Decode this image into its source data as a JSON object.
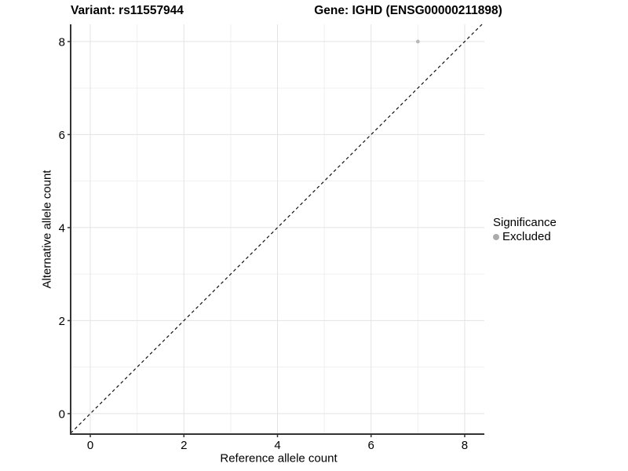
{
  "titles": {
    "variant": "Variant: rs11557944",
    "gene": "Gene: IGHD (ENSG00000211898)"
  },
  "chart_data": {
    "type": "scatter",
    "title": "Variant: rs11557944    Gene: IGHD (ENSG00000211898)",
    "xlabel": "Reference allele count",
    "ylabel": "Alternative allele count",
    "x_ticks": [
      0,
      2,
      4,
      6,
      8
    ],
    "y_ticks": [
      0,
      2,
      4,
      6,
      8
    ],
    "x_minor_ticks": [
      1,
      3,
      5,
      7
    ],
    "y_minor_ticks": [
      1,
      3,
      5,
      7
    ],
    "xlim": [
      -0.42,
      8.42
    ],
    "ylim": [
      -0.44,
      8.37
    ],
    "grid": true,
    "series": [
      {
        "name": "Excluded",
        "points": [
          {
            "x": 7,
            "y": 8
          }
        ],
        "color": "#b9b9b9"
      }
    ],
    "reference_line": {
      "kind": "identity",
      "slope": 1,
      "intercept": 0,
      "style": "dashed",
      "color": "#111111"
    },
    "legend_position": "right",
    "colors": {
      "excluded": "#b9b9b9",
      "legend_dot": "#ababab",
      "grid_major": "#e3e3e3",
      "grid_minor": "#f0f0f0",
      "axis_line": "#333333",
      "tick_text": "#000000"
    }
  },
  "legend": {
    "title": "Significance",
    "items": [
      {
        "label": "Excluded",
        "color": "#ababab"
      }
    ]
  },
  "axes": {
    "x": {
      "label": "Reference allele count"
    },
    "y": {
      "label": "Alternative allele count"
    }
  }
}
